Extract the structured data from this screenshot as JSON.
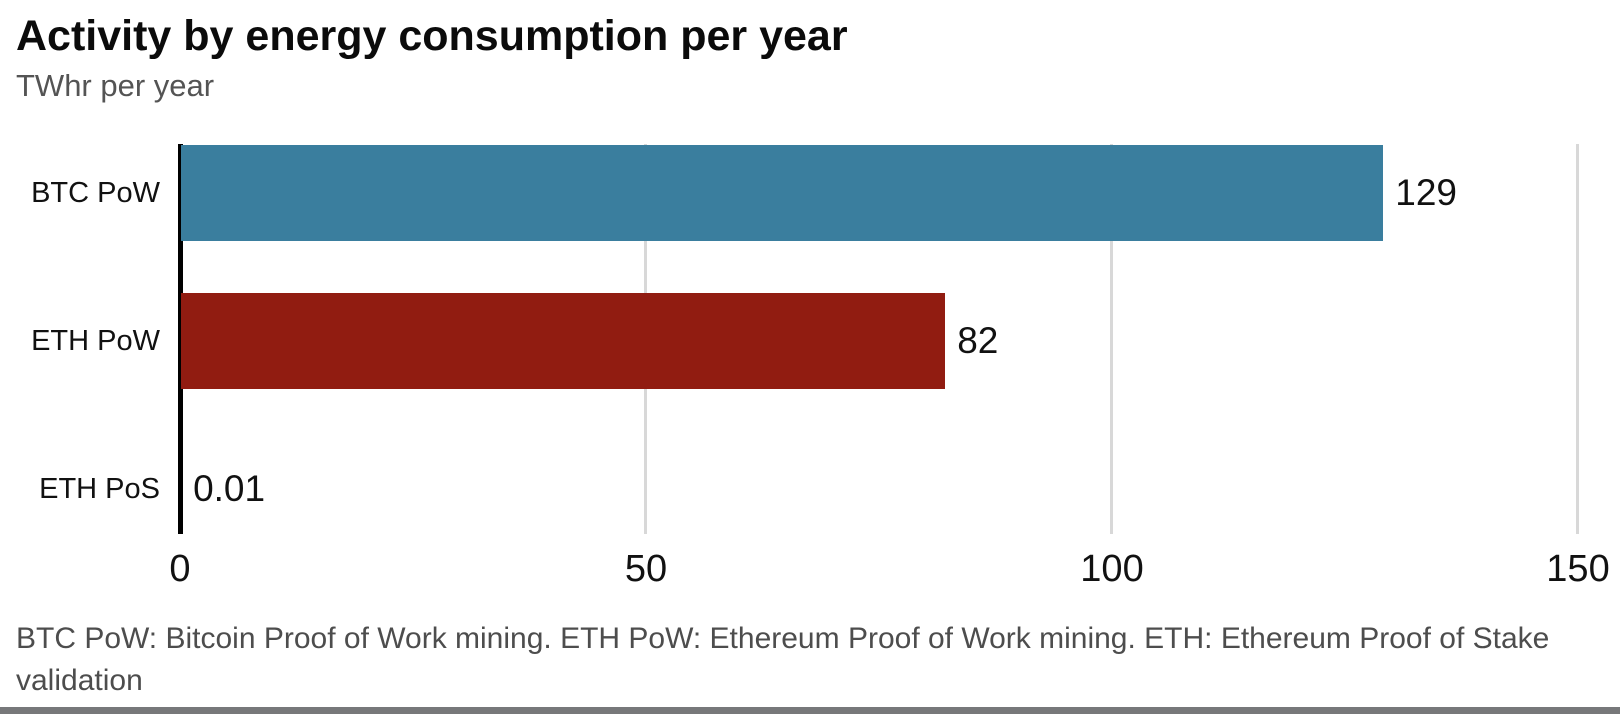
{
  "header": {
    "title": "Activity by energy consumption per year",
    "subtitle": "TWhr per year"
  },
  "footer": {
    "note": "BTC PoW: Bitcoin Proof of Work mining. ETH PoW: Ethereum Proof of Work mining. ETH: Ethereum Proof of Stake validation"
  },
  "colors": {
    "bar_btc_pow": "#3a7e9e",
    "bar_eth_pow": "#911c11",
    "axis": "#000000",
    "gridline": "#d8d8d8",
    "subtitle_text": "#545454",
    "footnote_text": "#4d4d4d",
    "bottom_rule": "#77787a"
  },
  "chart_data": {
    "type": "bar",
    "orientation": "horizontal",
    "title": "Activity by energy consumption per year",
    "subtitle_units": "TWhr per year",
    "categories": [
      "BTC PoW",
      "ETH PoW",
      "ETH PoS"
    ],
    "values": [
      129,
      82,
      0.01
    ],
    "value_labels": [
      "129",
      "82",
      "0.01"
    ],
    "bar_colors": [
      "#3a7e9e",
      "#911c11",
      null
    ],
    "xlim": [
      0,
      150
    ],
    "x_ticks": [
      0,
      50,
      100,
      150
    ],
    "grid": "vertical gridlines at 50, 100, 150",
    "legend": "none",
    "xlabel": "",
    "ylabel": ""
  }
}
